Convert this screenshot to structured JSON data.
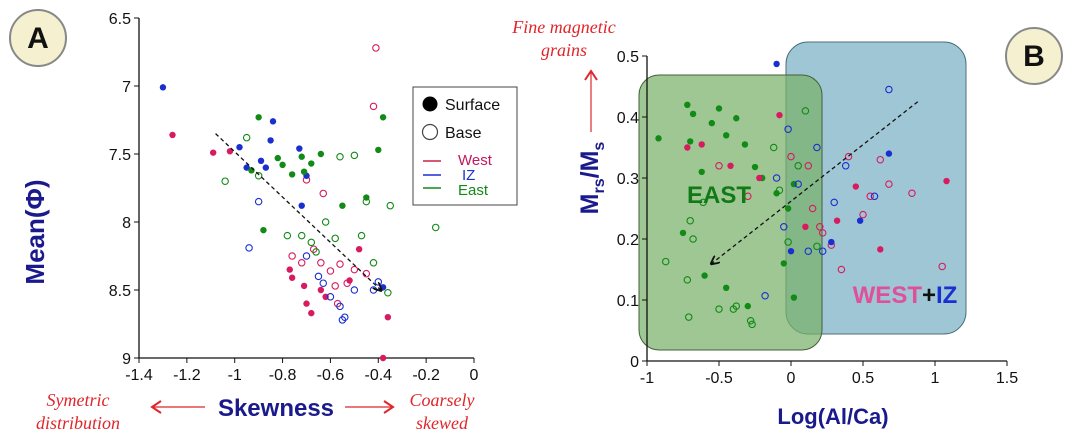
{
  "colors": {
    "west": "#d81b60",
    "iz": "#1a2fd0",
    "east": "#118a16",
    "axis_label": "#1a1a8c",
    "annotation_red": "#e0262b",
    "east_box": "#78b26a",
    "west_box": "#7fb3c6",
    "legend_red": "#cc1e4a"
  },
  "chart_data": [
    {
      "type": "scatter",
      "panel_label": "A",
      "xlabel": "Skewness",
      "ylabel": "Mean(Φ)",
      "xlim": [
        -1.4,
        0
      ],
      "ylim": [
        6.5,
        9
      ],
      "y_inverted": true,
      "xticks": [
        "-1.4",
        "-1.2",
        "-1",
        "-0.8",
        "-0.6",
        "-0.4",
        "-0.2",
        "0"
      ],
      "yticks": [
        "6.5",
        "7",
        "7.5",
        "8",
        "8.5",
        "9"
      ],
      "annotations": {
        "left": [
          "Symetric",
          "distribution"
        ],
        "right": [
          "Coarsely",
          "skewed"
        ]
      },
      "trend_arrow": {
        "from": [
          -1.08,
          7.35
        ],
        "to": [
          -0.39,
          8.5
        ]
      },
      "legend": {
        "marker_labels": [
          "Surface",
          "Base"
        ],
        "series_labels": [
          "West",
          "IZ",
          "East"
        ]
      },
      "series": [
        {
          "name": "West",
          "marker": "filled",
          "x": [
            -1.26,
            -1.09,
            -1.02,
            -0.77,
            -0.76,
            -0.71,
            -0.7,
            -0.68,
            -0.64,
            -0.62,
            -0.52,
            -0.48,
            -0.38,
            -0.36
          ],
          "y": [
            7.36,
            7.49,
            7.48,
            8.35,
            8.41,
            8.47,
            8.6,
            8.67,
            8.5,
            8.55,
            8.43,
            8.2,
            9.0,
            8.7
          ]
        },
        {
          "name": "West",
          "marker": "open",
          "x": [
            -0.41,
            -0.42,
            -0.76,
            -0.72,
            -0.67,
            -0.64,
            -0.6,
            -0.58,
            -0.56,
            -0.53,
            -0.5,
            -0.45,
            -0.7,
            -0.63,
            -0.57
          ],
          "y": [
            6.72,
            7.15,
            8.25,
            8.3,
            8.2,
            8.3,
            8.36,
            8.47,
            8.31,
            8.45,
            8.35,
            8.38,
            7.69,
            7.79,
            8.6
          ]
        },
        {
          "name": "IZ",
          "marker": "filled",
          "x": [
            -1.3,
            -0.98,
            -0.95,
            -0.89,
            -0.87,
            -0.84,
            -0.85,
            -0.73,
            -0.7,
            -0.72,
            -0.38
          ],
          "y": [
            7.01,
            7.45,
            7.6,
            7.55,
            7.6,
            7.26,
            7.4,
            7.46,
            7.66,
            7.88,
            8.48
          ]
        },
        {
          "name": "IZ",
          "marker": "open",
          "x": [
            -0.94,
            -0.9,
            -0.7,
            -0.65,
            -0.63,
            -0.6,
            -0.56,
            -0.54,
            -0.5,
            -0.42,
            -0.55,
            -0.4
          ],
          "y": [
            8.19,
            7.85,
            8.25,
            8.4,
            8.45,
            8.55,
            8.62,
            8.7,
            8.5,
            8.5,
            8.72,
            8.44
          ]
        },
        {
          "name": "East",
          "marker": "filled",
          "x": [
            -0.93,
            -0.9,
            -0.82,
            -0.8,
            -0.76,
            -0.72,
            -0.71,
            -0.68,
            -0.64,
            -0.55,
            -0.45,
            -0.4,
            -0.38,
            -0.88
          ],
          "y": [
            7.62,
            7.23,
            7.53,
            7.58,
            7.65,
            7.52,
            7.63,
            7.57,
            7.5,
            7.88,
            7.82,
            7.47,
            7.23,
            8.06
          ]
        },
        {
          "name": "East",
          "marker": "open",
          "x": [
            -1.04,
            -0.95,
            -0.9,
            -0.78,
            -0.72,
            -0.68,
            -0.56,
            -0.5,
            -0.45,
            -0.35,
            -0.36,
            -0.42,
            -0.16,
            -0.47,
            -0.58,
            -0.62,
            -0.66
          ],
          "y": [
            7.7,
            7.38,
            7.66,
            8.1,
            8.1,
            8.15,
            7.52,
            7.51,
            7.85,
            7.88,
            8.52,
            8.3,
            8.04,
            8.1,
            8.12,
            8.0,
            8.22
          ]
        }
      ]
    },
    {
      "type": "scatter",
      "panel_label": "B",
      "xlabel": "Log(Al/Ca)",
      "ylabel_main": "M",
      "ylabel_sub1": "rs",
      "ylabel_mid": "/M",
      "ylabel_sub2": "s",
      "xlim": [
        -1,
        1.5
      ],
      "ylim": [
        0,
        0.5
      ],
      "xticks": [
        "-1",
        "-0.5",
        "0",
        "0.5",
        "1",
        "1.5"
      ],
      "yticks": [
        "0",
        "0.1",
        "0.2",
        "0.3",
        "0.4",
        "0.5"
      ],
      "annotation_top": [
        "Fine magnetic",
        "grains"
      ],
      "regions": {
        "east_label": "EAST",
        "west_label_part1": "WEST",
        "west_label_plus": "+",
        "west_label_part2": "IZ"
      },
      "trend_arrow": {
        "from": [
          0.88,
          0.425
        ],
        "to": [
          -0.55,
          0.16
        ]
      },
      "series": [
        {
          "name": "East",
          "marker": "filled",
          "x": [
            -0.92,
            -0.72,
            -0.7,
            -0.68,
            -0.62,
            -0.55,
            -0.5,
            -0.45,
            -0.38,
            -0.32,
            -0.25,
            -0.2,
            -0.1,
            -0.02,
            0.02,
            0.02,
            -0.05,
            -0.3,
            -0.45,
            -0.6,
            -0.75
          ],
          "y": [
            0.365,
            0.42,
            0.36,
            0.405,
            0.31,
            0.39,
            0.414,
            0.37,
            0.398,
            0.355,
            0.318,
            0.3,
            0.275,
            0.25,
            0.29,
            0.104,
            0.16,
            0.09,
            0.12,
            0.14,
            0.21
          ]
        },
        {
          "name": "East",
          "marker": "open",
          "x": [
            -0.87,
            -0.72,
            -0.71,
            -0.68,
            -0.5,
            -0.4,
            -0.38,
            -0.28,
            -0.27,
            -0.12,
            -0.08,
            -0.02,
            0.05,
            0.1,
            0.18,
            -0.61,
            -0.7
          ],
          "y": [
            0.163,
            0.133,
            0.072,
            0.2,
            0.085,
            0.085,
            0.09,
            0.066,
            0.06,
            0.35,
            0.28,
            0.195,
            0.32,
            0.41,
            0.188,
            0.26,
            0.23
          ]
        },
        {
          "name": "West",
          "marker": "filled",
          "x": [
            -0.72,
            -0.62,
            -0.42,
            -0.22,
            -0.08,
            0.1,
            0.32,
            0.45,
            0.62,
            1.08
          ],
          "y": [
            0.35,
            0.355,
            0.32,
            0.3,
            0.403,
            0.22,
            0.23,
            0.286,
            0.183,
            0.295
          ]
        },
        {
          "name": "West",
          "marker": "open",
          "x": [
            -0.5,
            -0.3,
            0.0,
            0.15,
            0.2,
            0.22,
            0.28,
            0.4,
            0.55,
            0.62,
            0.68,
            0.84,
            1.05,
            0.5,
            0.12,
            0.35
          ],
          "y": [
            0.32,
            0.27,
            0.335,
            0.25,
            0.22,
            0.21,
            0.19,
            0.335,
            0.27,
            0.33,
            0.29,
            0.275,
            0.155,
            0.24,
            0.32,
            0.15
          ]
        },
        {
          "name": "IZ",
          "marker": "filled",
          "x": [
            -0.1,
            0.0,
            0.28,
            0.48,
            0.68
          ],
          "y": [
            0.487,
            0.18,
            0.195,
            0.23,
            0.34
          ]
        },
        {
          "name": "IZ",
          "marker": "open",
          "x": [
            -0.18,
            -0.1,
            -0.02,
            0.05,
            0.12,
            0.22,
            0.3,
            0.38,
            0.58,
            0.68,
            -0.05,
            0.18
          ],
          "y": [
            0.107,
            0.3,
            0.38,
            0.29,
            0.18,
            0.18,
            0.26,
            0.32,
            0.27,
            0.445,
            0.22,
            0.35
          ]
        }
      ]
    }
  ]
}
